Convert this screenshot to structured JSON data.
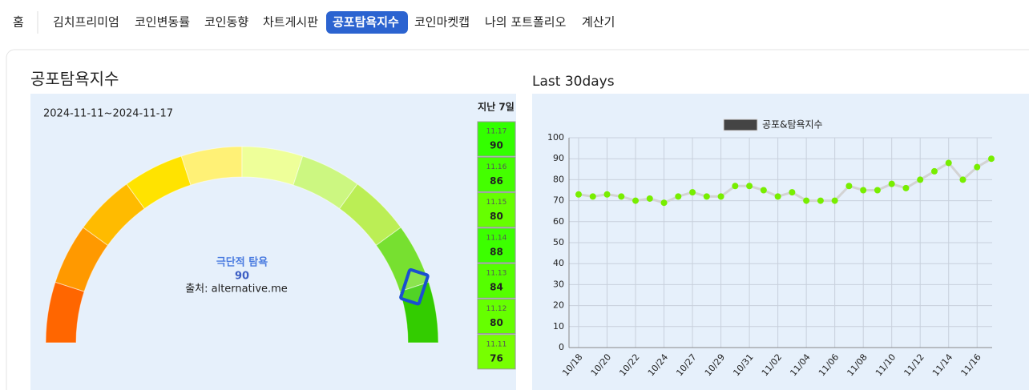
{
  "nav": {
    "items": [
      "홈",
      "김치프리미엄",
      "코인변동률",
      "코인동향",
      "차트게시판",
      "공포탐욕지수",
      "코인마켓캡",
      "나의 포트폴리오",
      "계산기"
    ],
    "active": 5
  },
  "left": {
    "title": "공포탐욕지수",
    "date_range": "2024-11-11~2024-11-17",
    "gauge": {
      "label": "극단적 탐욕",
      "value": 90,
      "source": "출처: alternative.me"
    },
    "last7": {
      "title": "지난 7일",
      "items": [
        {
          "date": "11.17",
          "value": 90,
          "color": "#33ff00"
        },
        {
          "date": "11.16",
          "value": 86,
          "color": "#44ff00"
        },
        {
          "date": "11.15",
          "value": 80,
          "color": "#66ff00"
        },
        {
          "date": "11.14",
          "value": 88,
          "color": "#3cff00"
        },
        {
          "date": "11.13",
          "value": 84,
          "color": "#55ff00"
        },
        {
          "date": "11.12",
          "value": 80,
          "color": "#66ff00"
        },
        {
          "date": "11.11",
          "value": 76,
          "color": "#77ff00"
        }
      ]
    }
  },
  "chart_data": {
    "type": "line",
    "title": "Last 30days",
    "categories": [
      "10/18",
      null,
      "10/20",
      null,
      "10/22",
      null,
      "10/24",
      null,
      "10/27",
      null,
      "10/29",
      null,
      "10/31",
      null,
      "11/02",
      null,
      "11/04",
      null,
      "11/06",
      null,
      "11/08",
      null,
      "11/10",
      null,
      "11/12",
      null,
      "11/14",
      null,
      "11/16",
      null
    ],
    "series": [
      {
        "name": "공포&탐욕지수",
        "color": "#d3d3d3",
        "point_color": "#77ee00",
        "legend_color": "#444444",
        "values": [
          73,
          72,
          73,
          72,
          70,
          71,
          69,
          72,
          74,
          72,
          72,
          77,
          77,
          75,
          72,
          74,
          70,
          70,
          70,
          77,
          75,
          75,
          78,
          76,
          80,
          84,
          88,
          80,
          86,
          90
        ]
      }
    ],
    "ylim": [
      0,
      100
    ],
    "yticks": [
      0,
      10,
      20,
      30,
      40,
      50,
      60,
      70,
      80,
      90,
      100
    ],
    "grid": true,
    "legend": "top"
  }
}
